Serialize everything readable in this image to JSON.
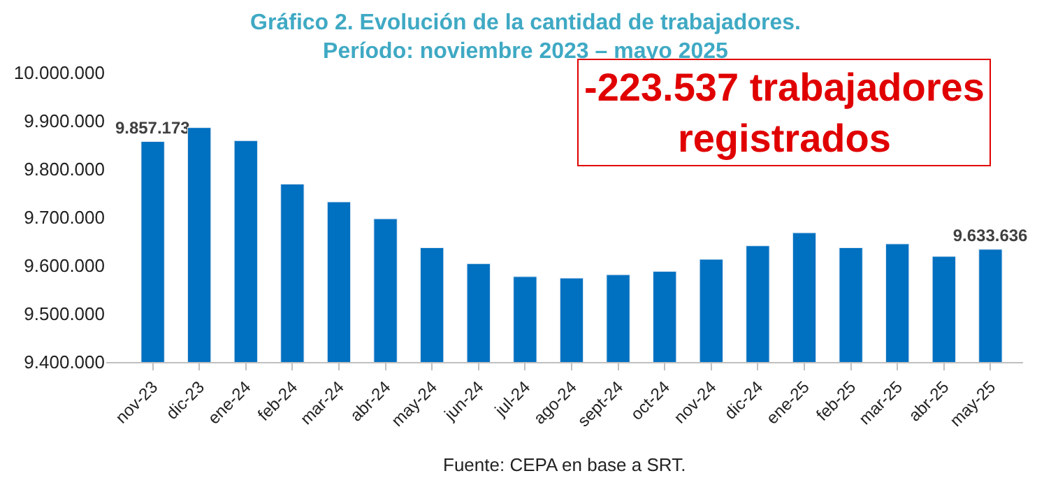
{
  "chart_data": {
    "type": "bar",
    "title": "Gráfico 2. Evolución de la cantidad de trabajadores.\nPeríodo: noviembre 2023 – mayo 2025",
    "categories": [
      "nov-23",
      "dic-23",
      "ene-24",
      "feb-24",
      "mar-24",
      "abr-24",
      "may-24",
      "jun-24",
      "jul-24",
      "ago-24",
      "sept-24",
      "oct-24",
      "nov-24",
      "dic-24",
      "ene-25",
      "feb-25",
      "mar-25",
      "abr-25",
      "may-25"
    ],
    "values": [
      9857173,
      9886000,
      9859000,
      9769000,
      9732000,
      9697000,
      9637000,
      9604000,
      9577000,
      9574000,
      9581000,
      9588000,
      9613000,
      9641000,
      9668000,
      9637000,
      9645000,
      9619000,
      9633636
    ],
    "value_labels": [
      "9.857.173",
      null,
      null,
      null,
      null,
      null,
      null,
      null,
      null,
      null,
      null,
      null,
      null,
      null,
      null,
      null,
      null,
      null,
      "9.633.636"
    ],
    "color": "#0070c0",
    "ylim": [
      9400000,
      10000000
    ],
    "yticks": [
      {
        "value": 9400000,
        "label": "9.400.000"
      },
      {
        "value": 9500000,
        "label": "9.500.000"
      },
      {
        "value": 9600000,
        "label": "9.600.000"
      },
      {
        "value": 9700000,
        "label": "9.700.000"
      },
      {
        "value": 9800000,
        "label": "9.800.000"
      },
      {
        "value": 9900000,
        "label": "9.900.000"
      },
      {
        "value": 10000000,
        "label": "10.000.000"
      }
    ],
    "annotations": [
      "-223.537 trabajadores\nregistrados",
      "Fuente: CEPA en base a SRT."
    ]
  }
}
